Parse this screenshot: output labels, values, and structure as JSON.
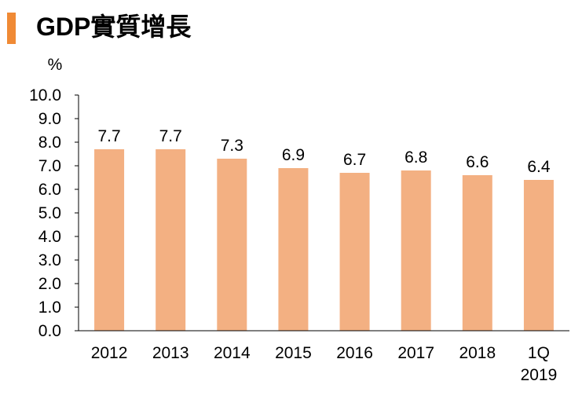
{
  "header": {
    "title": "GDP實質增長"
  },
  "colors": {
    "accent": "#F08A35",
    "bar": "#F3B082",
    "axis": "#000000"
  },
  "chart_data": {
    "type": "bar",
    "title": "GDP實質增長",
    "ylabel": "%",
    "xlabel": "",
    "ylim": [
      0,
      10
    ],
    "ytick_step": 1,
    "ytick_labels": [
      "0.0",
      "1.0",
      "2.0",
      "3.0",
      "4.0",
      "5.0",
      "6.0",
      "7.0",
      "8.0",
      "9.0",
      "10.0"
    ],
    "categories": [
      [
        "2012"
      ],
      [
        "2013"
      ],
      [
        "2014"
      ],
      [
        "2015"
      ],
      [
        "2016"
      ],
      [
        "2017"
      ],
      [
        "2018"
      ],
      [
        "1Q",
        "2019"
      ]
    ],
    "values": [
      7.7,
      7.7,
      7.3,
      6.9,
      6.7,
      6.8,
      6.6,
      6.4
    ],
    "value_labels": [
      "7.7",
      "7.7",
      "7.3",
      "6.9",
      "6.7",
      "6.8",
      "6.6",
      "6.4"
    ],
    "grid": false,
    "legend": "none"
  }
}
